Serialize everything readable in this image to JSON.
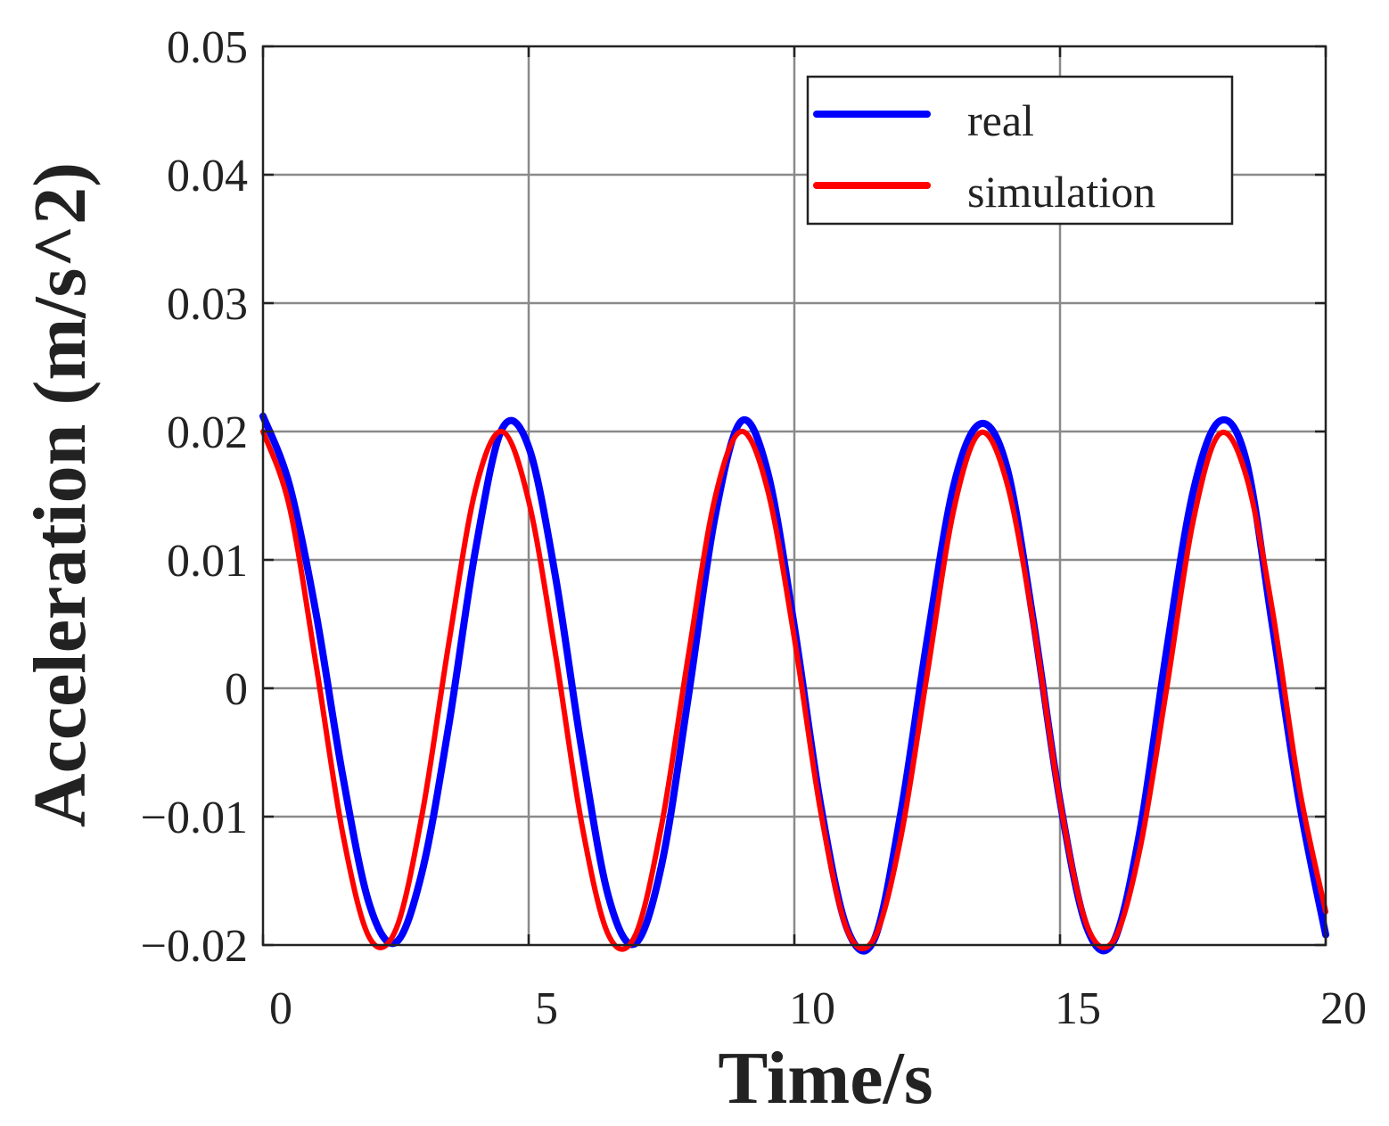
{
  "chart_data": {
    "type": "line",
    "title": "",
    "xlabel": "Time/s",
    "ylabel": "Acceleration (m/s^2)",
    "xlim": [
      0,
      20
    ],
    "ylim": [
      -0.02,
      0.05
    ],
    "xticks": [
      0,
      5,
      10,
      15,
      20
    ],
    "xtick_labels": [
      "0",
      "5",
      "10",
      "15",
      "20"
    ],
    "yticks": [
      -0.02,
      -0.01,
      0,
      0.01,
      0.02,
      0.03,
      0.04,
      0.05
    ],
    "ytick_labels": [
      "−0.02",
      "−0.01",
      "0",
      "0.01",
      "0.02",
      "0.03",
      "0.04",
      "0.05"
    ],
    "grid": true,
    "legend_position": "top-right",
    "series": [
      {
        "name": "real",
        "color": "#0000ff",
        "x": [
          0,
          0.5,
          1,
          1.5,
          2,
          2.5,
          3,
          3.5,
          4,
          4.5,
          5,
          5.5,
          6,
          6.5,
          7,
          7.5,
          8,
          8.5,
          9,
          9.5,
          10,
          10.5,
          11,
          11.5,
          12,
          12.5,
          13,
          13.5,
          14,
          14.5,
          15,
          15.5,
          16,
          16.5,
          17,
          17.5,
          18,
          18.5,
          19,
          19.5,
          20
        ],
        "y": [
          0.0212,
          0.0158,
          0.0058,
          -0.0068,
          -0.0168,
          -0.0198,
          -0.0142,
          -0.0028,
          0.0108,
          0.0202,
          0.0188,
          0.0088,
          -0.0048,
          -0.0162,
          -0.0199,
          -0.0138,
          -0.0008,
          0.0132,
          0.0208,
          0.0168,
          0.0048,
          -0.0092,
          -0.0188,
          -0.0196,
          -0.0098,
          0.0038,
          0.0158,
          0.0206,
          0.0172,
          0.0052,
          -0.0088,
          -0.0186,
          -0.0198,
          -0.0112,
          0.0028,
          0.0152,
          0.0208,
          0.0178,
          0.0048,
          -0.0088,
          -0.0192
        ]
      },
      {
        "name": "simulation",
        "color": "#ff0000",
        "x": [
          0,
          0.5,
          1,
          1.5,
          2,
          2.5,
          3,
          3.5,
          4,
          4.5,
          5,
          5.5,
          6,
          6.5,
          7,
          7.5,
          8,
          8.5,
          9,
          9.5,
          10,
          10.5,
          11,
          11.5,
          12,
          12.5,
          13,
          13.5,
          14,
          14.5,
          15,
          15.5,
          16,
          16.5,
          17,
          17.5,
          18,
          18.5,
          19,
          19.5,
          20
        ],
        "y": [
          0.02,
          0.0141,
          0.0018,
          -0.0113,
          -0.0194,
          -0.0188,
          -0.0097,
          0.0036,
          0.0155,
          0.02,
          0.0146,
          0.0028,
          -0.0106,
          -0.0192,
          -0.0193,
          -0.0107,
          0.0024,
          0.0147,
          0.02,
          0.0154,
          0.0039,
          -0.0097,
          -0.0189,
          -0.0195,
          -0.0117,
          0.0011,
          0.0139,
          0.0199,
          0.016,
          0.005,
          -0.0088,
          -0.0184,
          -0.0197,
          -0.0126,
          -0.0002,
          0.0129,
          0.0198,
          0.0166,
          0.006,
          -0.0077,
          -0.0174
        ]
      }
    ]
  }
}
